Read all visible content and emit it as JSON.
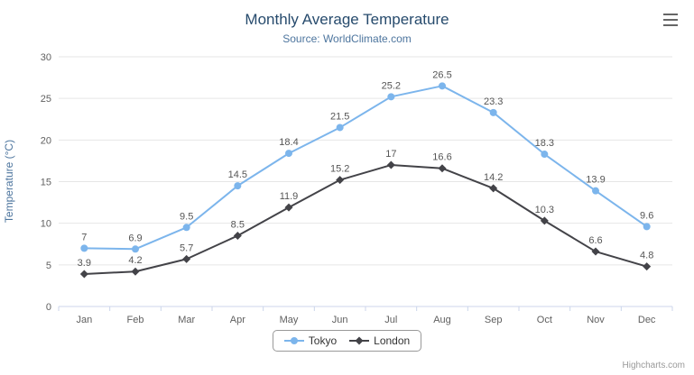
{
  "header": {
    "title": "Monthly Average Temperature",
    "subtitle": "Source: WorldClimate.com"
  },
  "menu": {
    "icon": "hamburger-icon"
  },
  "credits": "Highcharts.com",
  "chart_data": {
    "type": "line",
    "title": "Monthly Average Temperature",
    "subtitle": "Source: WorldClimate.com",
    "categories": [
      "Jan",
      "Feb",
      "Mar",
      "Apr",
      "May",
      "Jun",
      "Jul",
      "Aug",
      "Sep",
      "Oct",
      "Nov",
      "Dec"
    ],
    "series": [
      {
        "name": "Tokyo",
        "color": "#7cb5ec",
        "marker": "circle",
        "values": [
          7,
          6.9,
          9.5,
          14.5,
          18.4,
          21.5,
          25.2,
          26.5,
          23.3,
          18.3,
          13.9,
          9.6
        ]
      },
      {
        "name": "London",
        "color": "#434348",
        "marker": "diamond",
        "values": [
          3.9,
          4.2,
          5.7,
          8.5,
          11.9,
          15.2,
          17,
          16.6,
          14.2,
          10.3,
          6.6,
          4.8
        ]
      }
    ],
    "xlabel": "",
    "ylabel": "Temperature (°C)",
    "ylim": [
      0,
      30
    ],
    "ytick_step": 5,
    "grid": true,
    "data_labels": true,
    "legend_position": "bottom",
    "axis_line_color": "#ccd6eb",
    "grid_color": "#e6e6e6"
  },
  "legend": {
    "items": [
      {
        "label": "Tokyo",
        "color": "#7cb5ec",
        "marker": "circle"
      },
      {
        "label": "London",
        "color": "#434348",
        "marker": "diamond"
      }
    ]
  }
}
